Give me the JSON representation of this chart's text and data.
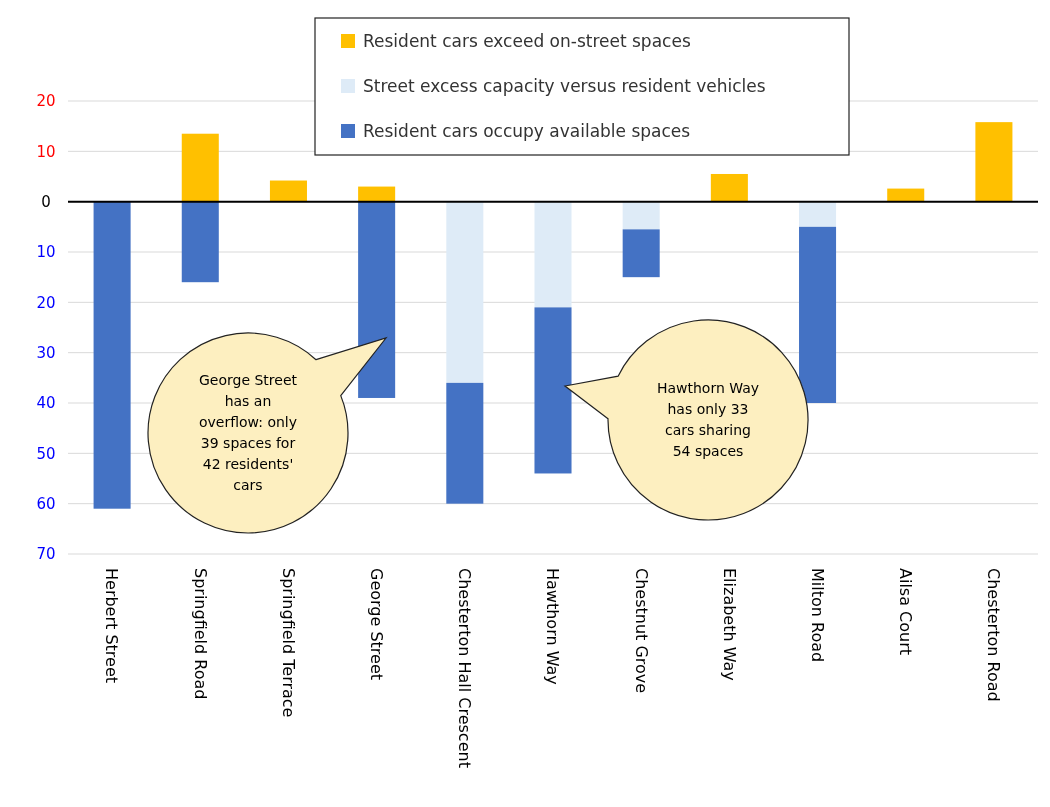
{
  "chart_data": {
    "type": "bar",
    "stacked": true,
    "categories": [
      "Herbert Street",
      "Springfield Road",
      "Springfield Terrace",
      "George Street",
      "Chesterton Hall Crescent",
      "Hawthorn Way",
      "Chestnut Grove",
      "Elizabeth Way",
      "Milton Road",
      "Ailsa Court",
      "Chesterton Road"
    ],
    "series": [
      {
        "name": "Resident cars exceed on-street spaces",
        "color": "#ffc000",
        "values": [
          null,
          13.5,
          4.2,
          3,
          null,
          null,
          null,
          5.5,
          null,
          2.6,
          15.8
        ]
      },
      {
        "name": "Street excess capacity versus resident vehicles",
        "color": "#deebf7",
        "values": [
          null,
          null,
          null,
          null,
          -36,
          -21,
          -5.5,
          null,
          -5,
          null,
          null
        ]
      },
      {
        "name": "Resident cars occupy available spaces",
        "color": "#4472c4",
        "values": [
          -61,
          -16,
          null,
          -39,
          -24,
          -33,
          -9.5,
          null,
          -35,
          null,
          null
        ]
      }
    ],
    "ylim": [
      -70,
      20
    ],
    "yticks": [
      {
        "value": 20,
        "label": "20"
      },
      {
        "value": 10,
        "label": "10"
      },
      0,
      {
        "value": -10,
        "label": "10"
      },
      {
        "value": -20,
        "label": "20"
      },
      {
        "value": -30,
        "label": "30"
      },
      {
        "value": -40,
        "label": "40"
      },
      {
        "value": -50,
        "label": "50"
      },
      {
        "value": -60,
        "label": "60"
      },
      {
        "value": -70,
        "label": "70"
      }
    ],
    "grid": "y",
    "legend": "top",
    "annotations": [
      "George Street has an overflow: only 39 spaces for 42 residents' cars",
      "Hawthorn Way has only 33 cars sharing 54 spaces"
    ]
  }
}
